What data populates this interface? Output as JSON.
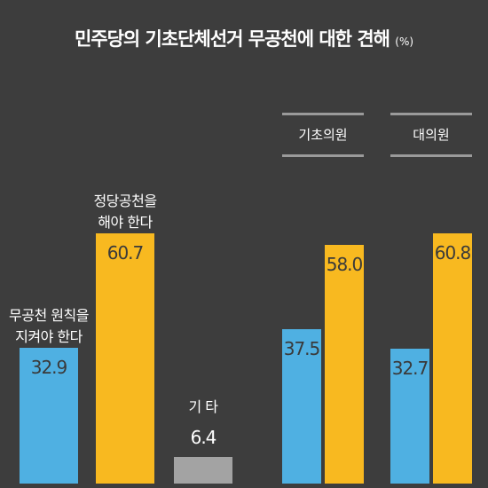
{
  "title": "민주당의 기초단체선거 무공천에 대한 견해",
  "unit": "(%)",
  "chart_data": [
    {
      "type": "bar",
      "categories": [
        "무공천 원칙을\n지켜야 한다",
        "정당공천을\n해야 한다",
        "기 타"
      ],
      "values": [
        32.9,
        60.7,
        6.4
      ],
      "colors": [
        "#4fb0e2",
        "#f8b920",
        "#a3a3a3"
      ]
    },
    {
      "type": "grouped-bar",
      "categories": [
        "기초의원",
        "대의원"
      ],
      "series": [
        {
          "color": "#4fb0e2",
          "values": [
            37.5,
            32.7
          ]
        },
        {
          "color": "#f8b920",
          "values": [
            58,
            60.8
          ],
          "value_labels": [
            "58.0",
            "60.8"
          ]
        }
      ]
    }
  ]
}
